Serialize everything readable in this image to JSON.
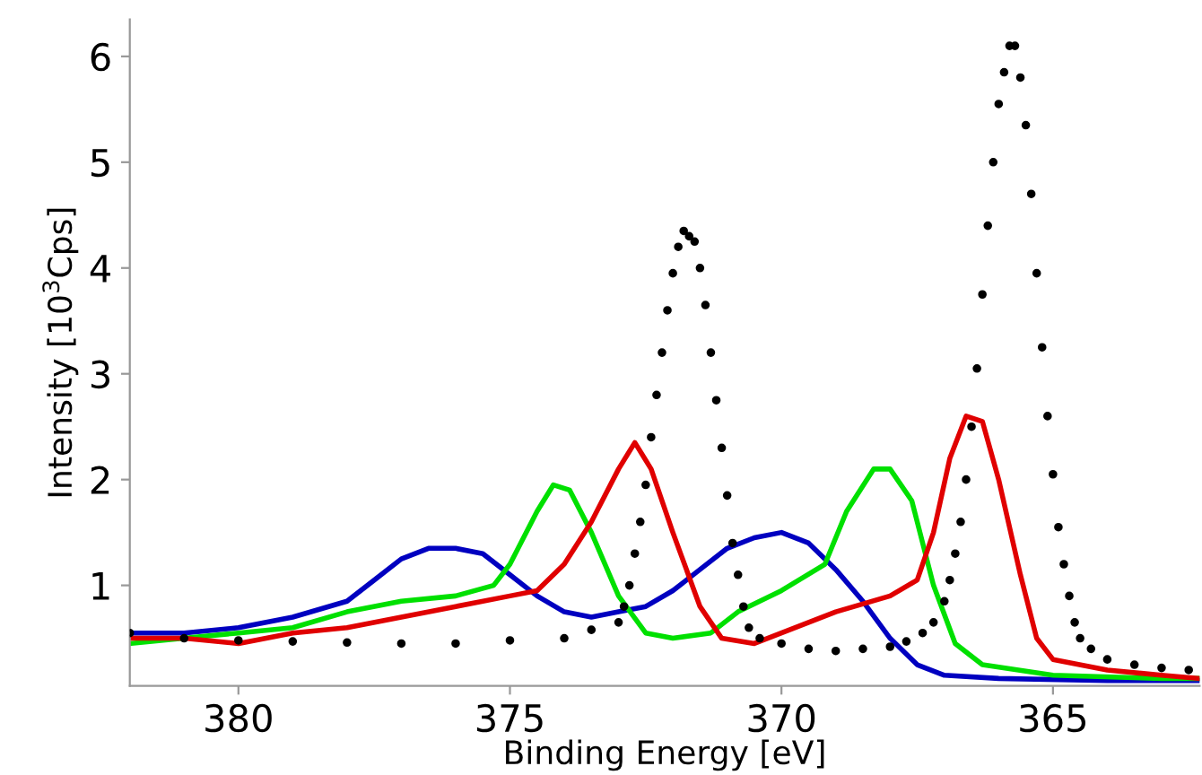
{
  "chart_data": {
    "type": "line",
    "xlabel": "Binding Energy [eV]",
    "ylabel": "Intensity [10$^{3}$Cps]",
    "xlim": [
      382.0,
      362.3
    ],
    "xticks": [
      380,
      375,
      370,
      365
    ],
    "ylim": [
      0.05,
      6.35
    ],
    "yticks": [
      1,
      2,
      3,
      4,
      5,
      6
    ],
    "grid": false,
    "legend": false,
    "line_style": "solid",
    "series": [
      {
        "color": "#0000c0",
        "x": [
          382,
          381,
          380,
          379,
          378,
          377.5,
          377,
          376.5,
          376,
          375.5,
          375,
          374.5,
          374,
          373.5,
          373,
          372.5,
          372,
          371.5,
          371,
          370.5,
          370,
          369.5,
          369,
          368.5,
          368,
          367.5,
          367,
          366,
          364,
          362.3
        ],
        "values": [
          0.55,
          0.55,
          0.6,
          0.7,
          0.85,
          1.05,
          1.25,
          1.35,
          1.35,
          1.3,
          1.1,
          0.9,
          0.75,
          0.7,
          0.75,
          0.8,
          0.95,
          1.15,
          1.35,
          1.45,
          1.5,
          1.4,
          1.15,
          0.85,
          0.5,
          0.25,
          0.15,
          0.12,
          0.1,
          0.1
        ]
      },
      {
        "color": "#00e000",
        "x": [
          382,
          381,
          380,
          379,
          378,
          377,
          376,
          375.3,
          375,
          374.5,
          374.2,
          373.9,
          373.5,
          373,
          372.5,
          372,
          371.3,
          370.8,
          370,
          369.2,
          368.8,
          368.3,
          368,
          367.6,
          367.2,
          366.8,
          366.3,
          365,
          363,
          362.3
        ],
        "values": [
          0.45,
          0.5,
          0.55,
          0.6,
          0.75,
          0.85,
          0.9,
          1.0,
          1.2,
          1.7,
          1.95,
          1.9,
          1.5,
          0.9,
          0.55,
          0.5,
          0.55,
          0.75,
          0.95,
          1.2,
          1.7,
          2.1,
          2.1,
          1.8,
          1.0,
          0.45,
          0.25,
          0.15,
          0.12,
          0.12
        ]
      },
      {
        "color": "#e00000",
        "x": [
          382,
          381,
          380,
          379,
          378,
          377,
          376,
          375,
          374.5,
          374,
          373.5,
          373,
          372.7,
          372.4,
          372,
          371.5,
          371.1,
          370.5,
          370,
          369,
          368,
          367.5,
          367.2,
          366.9,
          366.6,
          366.3,
          366,
          365.6,
          365.3,
          365,
          364,
          363,
          362.3
        ],
        "values": [
          0.5,
          0.5,
          0.45,
          0.55,
          0.6,
          0.7,
          0.8,
          0.9,
          0.95,
          1.2,
          1.6,
          2.1,
          2.35,
          2.1,
          1.5,
          0.8,
          0.5,
          0.45,
          0.55,
          0.75,
          0.9,
          1.05,
          1.5,
          2.2,
          2.6,
          2.55,
          2.0,
          1.1,
          0.5,
          0.3,
          0.2,
          0.15,
          0.12
        ]
      },
      {
        "type": "scatter",
        "color": "#000000",
        "marker": "circle",
        "x": [
          382,
          381,
          380,
          379,
          378,
          377,
          376,
          375,
          374,
          373.5,
          373.0,
          372.9,
          372.8,
          372.7,
          372.6,
          372.5,
          372.4,
          372.3,
          372.2,
          372.1,
          372.0,
          371.9,
          371.8,
          371.7,
          371.6,
          371.5,
          371.4,
          371.3,
          371.2,
          371.1,
          371.0,
          370.9,
          370.8,
          370.7,
          370.6,
          370.4,
          370.0,
          369.5,
          369.0,
          368.5,
          368.0,
          367.7,
          367.4,
          367.2,
          367.0,
          366.9,
          366.8,
          366.7,
          366.6,
          366.5,
          366.4,
          366.3,
          366.2,
          366.1,
          366.0,
          365.9,
          365.8,
          365.7,
          365.6,
          365.5,
          365.4,
          365.3,
          365.2,
          365.1,
          365.0,
          364.9,
          364.8,
          364.7,
          364.6,
          364.5,
          364.3,
          364.0,
          363.5,
          363.0,
          362.5
        ],
        "values": [
          0.55,
          0.5,
          0.48,
          0.47,
          0.46,
          0.45,
          0.45,
          0.48,
          0.5,
          0.58,
          0.65,
          0.8,
          1.0,
          1.3,
          1.6,
          1.95,
          2.4,
          2.8,
          3.2,
          3.6,
          3.95,
          4.2,
          4.35,
          4.3,
          4.25,
          4.0,
          3.65,
          3.2,
          2.75,
          2.3,
          1.85,
          1.4,
          1.1,
          0.8,
          0.6,
          0.5,
          0.45,
          0.4,
          0.38,
          0.4,
          0.42,
          0.47,
          0.55,
          0.65,
          0.85,
          1.05,
          1.3,
          1.6,
          2.0,
          2.5,
          3.05,
          3.75,
          4.4,
          5.0,
          5.55,
          5.85,
          6.1,
          6.1,
          5.8,
          5.35,
          4.7,
          3.95,
          3.25,
          2.6,
          2.05,
          1.55,
          1.2,
          0.9,
          0.65,
          0.5,
          0.4,
          0.3,
          0.25,
          0.22,
          0.2
        ]
      }
    ]
  }
}
